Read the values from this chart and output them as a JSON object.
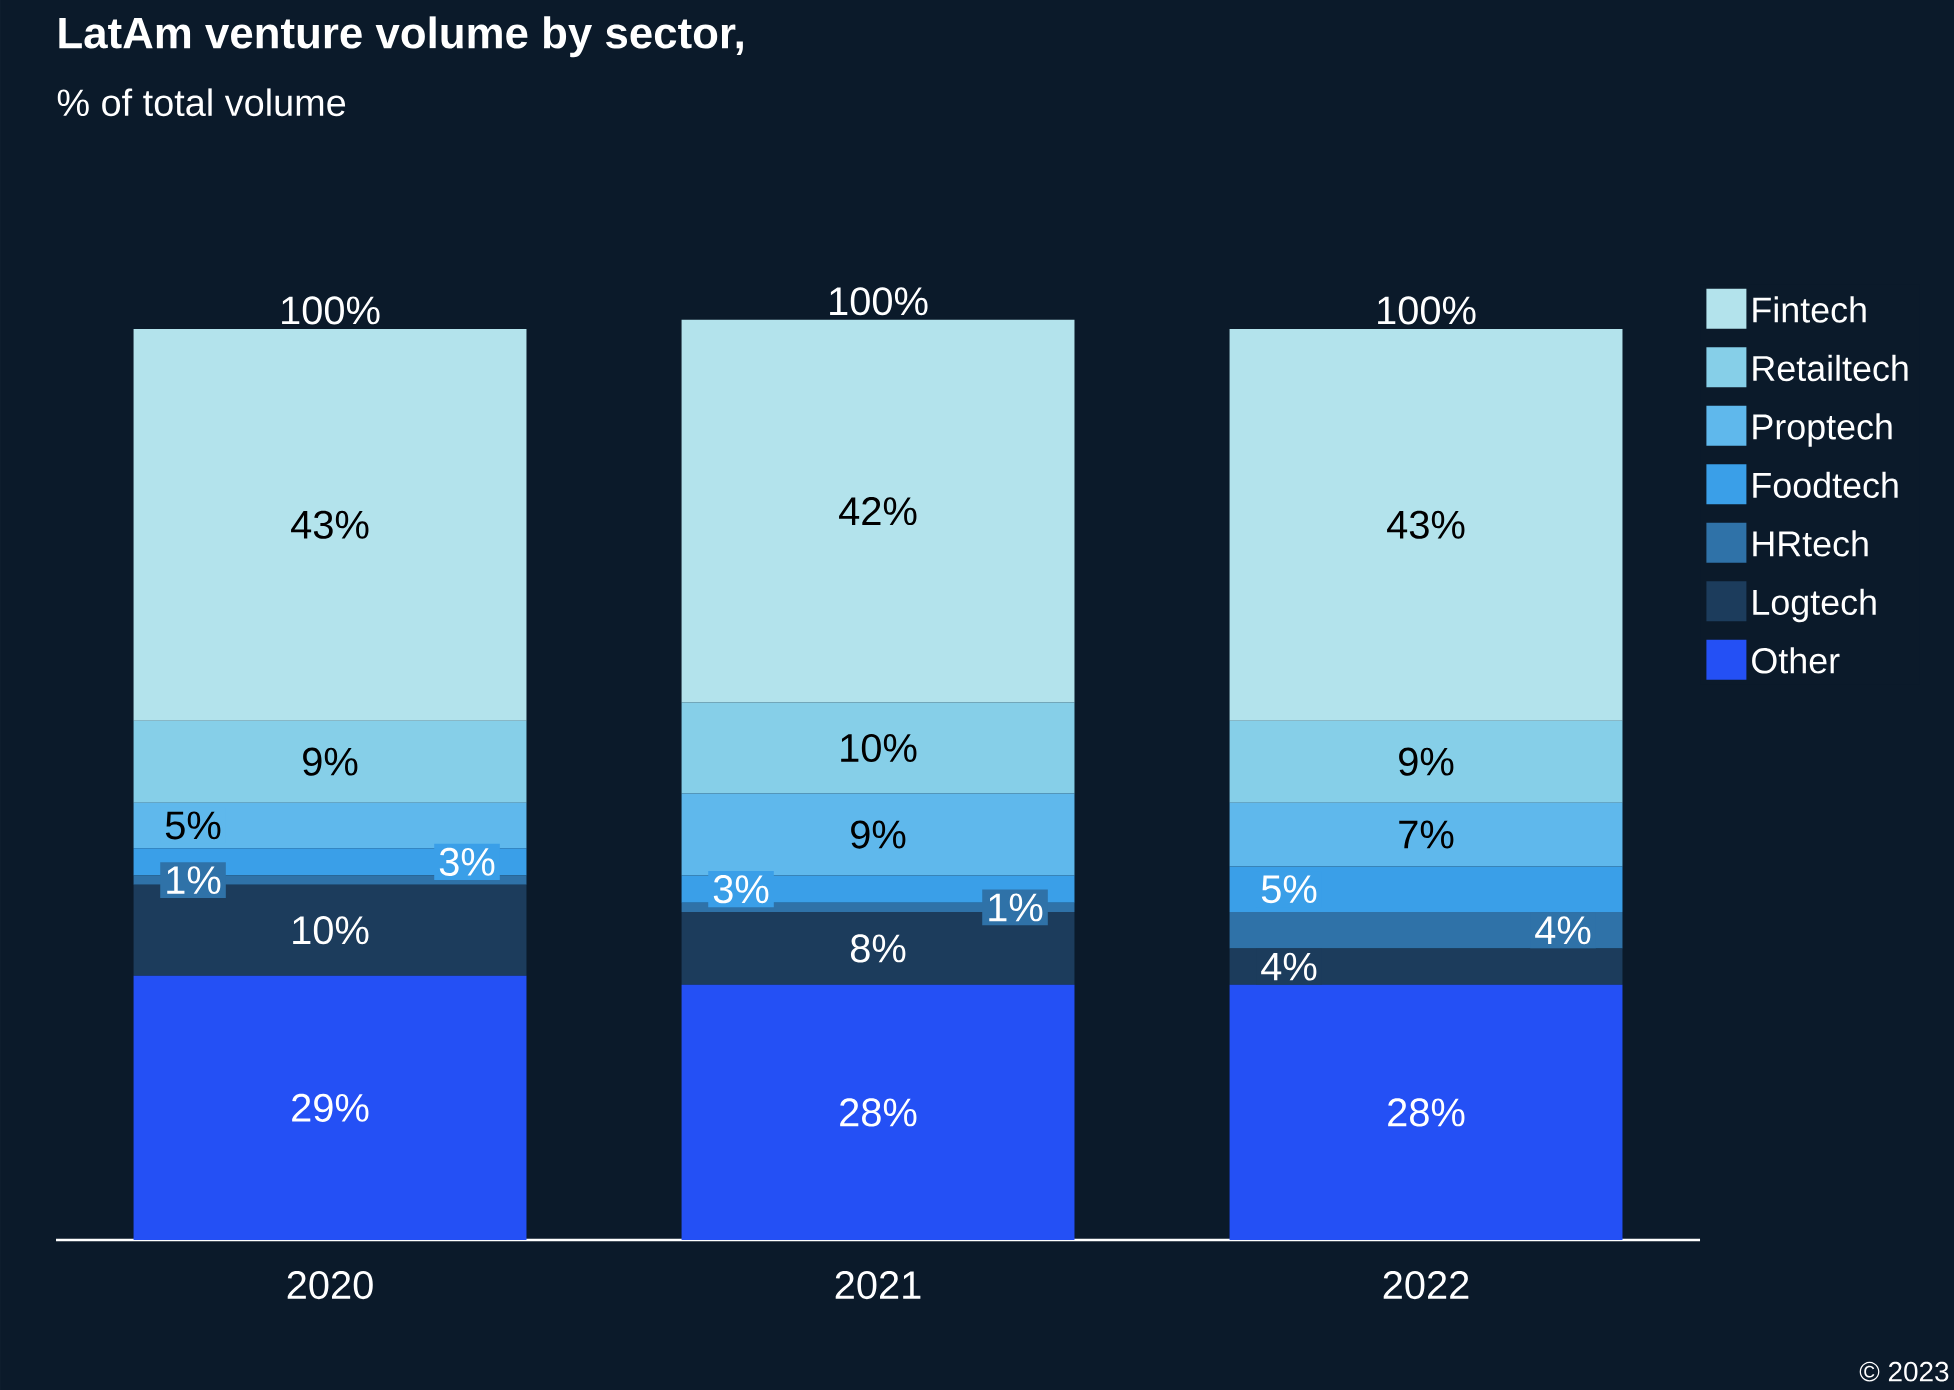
{
  "chart_data": {
    "type": "bar",
    "stacked": true,
    "title": "LatAm venture volume by sector,",
    "subtitle": "% of total volume",
    "categories": [
      "2020",
      "2021",
      "2022"
    ],
    "series": [
      {
        "name": "Other",
        "color": "#2450f5",
        "values": [
          29,
          28,
          28
        ],
        "value_labels": [
          "29%",
          "28%",
          "28%"
        ]
      },
      {
        "name": "Logtech",
        "color": "#1c3c5c",
        "values": [
          10,
          8,
          4
        ],
        "value_labels": [
          "10%",
          "8%",
          "4%"
        ]
      },
      {
        "name": "HRtech",
        "color": "#2f72a8",
        "values": [
          1,
          1,
          4
        ],
        "value_labels": [
          "1%",
          "1%",
          "4%"
        ]
      },
      {
        "name": "Foodtech",
        "color": "#3a9fe8",
        "values": [
          3,
          3,
          5
        ],
        "value_labels": [
          "3%",
          "3%",
          "5%"
        ]
      },
      {
        "name": "Proptech",
        "color": "#5fb8ec",
        "values": [
          5,
          9,
          7
        ],
        "value_labels": [
          "5%",
          "9%",
          "7%"
        ]
      },
      {
        "name": "Retailtech",
        "color": "#86cfe8",
        "values": [
          9,
          10,
          9
        ],
        "value_labels": [
          "9%",
          "10%",
          "9%"
        ]
      },
      {
        "name": "Fintech",
        "color": "#b3e3ec",
        "values": [
          43,
          42,
          43
        ],
        "value_labels": [
          "43%",
          "42%",
          "43%"
        ]
      }
    ],
    "totals": [
      "100%",
      "100%",
      "100%"
    ],
    "legend": "right",
    "annotations": [
      "© 2023"
    ]
  }
}
